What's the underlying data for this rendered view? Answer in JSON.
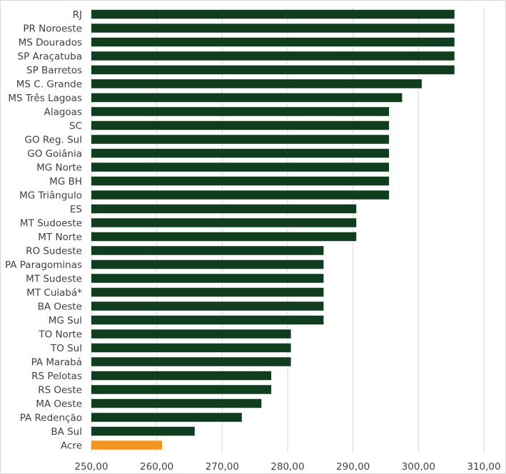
{
  "chart_data": {
    "type": "bar",
    "orientation": "horizontal",
    "title": "",
    "xlabel": "",
    "ylabel": "",
    "xlim": [
      250,
      310
    ],
    "x_ticks": [
      "250,00",
      "260,00",
      "270,00",
      "280,00",
      "290,00",
      "300,00",
      "310,00"
    ],
    "x_tick_values": [
      250,
      260,
      270,
      280,
      290,
      300,
      310
    ],
    "grid": true,
    "legend": "none",
    "colors": {
      "default": "#0f3d1e",
      "highlight": "#f0951e",
      "grid": "#d9d9d9",
      "text": "#404040"
    },
    "categories": [
      "RJ",
      "PR Noroeste",
      "MS Dourados",
      "SP Araçatuba",
      "SP Barretos",
      "MS C. Grande",
      "MS Três Lagoas",
      "Alagoas",
      "SC",
      "GO Reg. Sul",
      "GO Goiânia",
      "MG Norte",
      "MG BH",
      "MG Triângulo",
      "ES",
      "MT Sudoeste",
      "MT Norte",
      "RO Sudeste",
      "PA Paragominas",
      "MT Sudeste",
      "MT Cuiabá*",
      "BA Oeste",
      "MG Sul",
      "TO Norte",
      "TO Sul",
      "PA Marabá",
      "RS Pelotas",
      "RS Oeste",
      "MA Oeste",
      "PA Redenção",
      "BA Sul",
      "Acre"
    ],
    "values": [
      305.5,
      305.5,
      305.5,
      305.5,
      305.5,
      300.5,
      297.5,
      295.5,
      295.5,
      295.5,
      295.5,
      295.5,
      295.5,
      295.5,
      290.5,
      290.5,
      290.5,
      285.5,
      285.5,
      285.5,
      285.5,
      285.5,
      285.5,
      280.5,
      280.5,
      280.5,
      277.5,
      277.5,
      276.0,
      273.0,
      265.8,
      260.8
    ],
    "highlight_category": "Acre"
  }
}
